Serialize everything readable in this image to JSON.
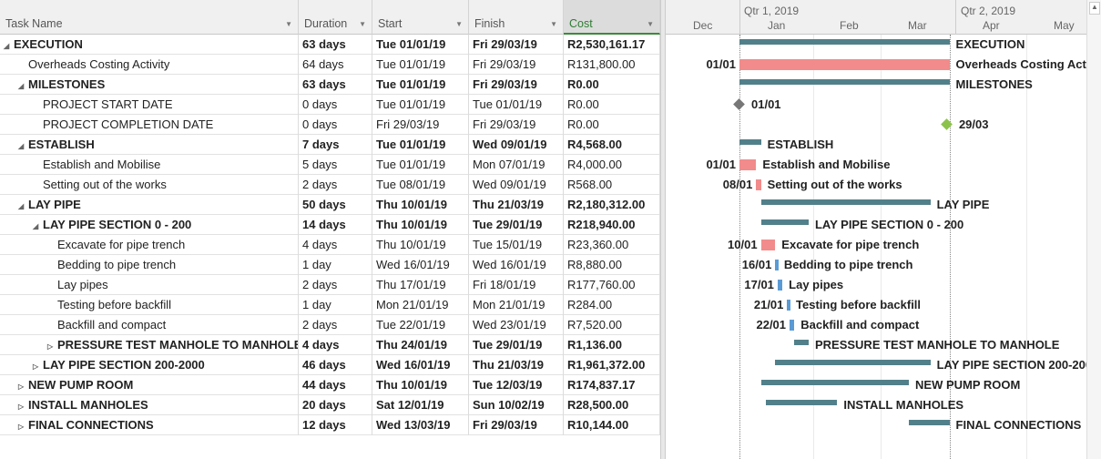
{
  "columns": {
    "task_name": "Task Name",
    "duration": "Duration",
    "start": "Start",
    "finish": "Finish",
    "cost": "Cost"
  },
  "timescale": {
    "quarters": [
      "Qtr 1, 2019",
      "Qtr 2, 2019"
    ],
    "months": [
      "Dec",
      "Jan",
      "Feb",
      "Mar",
      "Apr",
      "May"
    ]
  },
  "colors": {
    "summary": "#52808a",
    "critical": "#f28b8b",
    "task": "#5b9bd5",
    "milestone": "#777777",
    "milestone_finish": "#8bc34a"
  },
  "rows": [
    {
      "name": "EXECUTION",
      "level": 0,
      "toggle": "expanded",
      "bold": true,
      "duration": "63 days",
      "start": "Tue 01/01/19",
      "finish": "Fri 29/03/19",
      "cost": "R2,530,161.17",
      "bar": "summary",
      "s": "2019-01-01",
      "f": "2019-03-29"
    },
    {
      "name": "Overheads Costing Activity",
      "level": 1,
      "toggle": "",
      "bold": false,
      "duration": "64 days",
      "start": "Tue 01/01/19",
      "finish": "Fri 29/03/19",
      "cost": "R131,800.00",
      "bar": "critical",
      "s": "2019-01-01",
      "f": "2019-03-29",
      "left": "01/01"
    },
    {
      "name": "MILESTONES",
      "level": 1,
      "toggle": "expanded",
      "bold": true,
      "duration": "63 days",
      "start": "Tue 01/01/19",
      "finish": "Fri 29/03/19",
      "cost": "R0.00",
      "bar": "summary",
      "s": "2019-01-01",
      "f": "2019-03-29"
    },
    {
      "name": "PROJECT START DATE",
      "level": 2,
      "toggle": "",
      "bold": false,
      "duration": "0 days",
      "start": "Tue 01/01/19",
      "finish": "Tue 01/01/19",
      "cost": "R0.00",
      "bar": "milestone",
      "s": "2019-01-01",
      "f": "2019-01-01",
      "right": "01/01"
    },
    {
      "name": "PROJECT COMPLETION DATE",
      "level": 2,
      "toggle": "",
      "bold": false,
      "duration": "0 days",
      "start": "Fri 29/03/19",
      "finish": "Fri 29/03/19",
      "cost": "R0.00",
      "bar": "milestone_finish",
      "s": "2019-03-29",
      "f": "2019-03-29",
      "right": "29/03"
    },
    {
      "name": "ESTABLISH",
      "level": 1,
      "toggle": "expanded",
      "bold": true,
      "duration": "7 days",
      "start": "Tue 01/01/19",
      "finish": "Wed 09/01/19",
      "cost": "R4,568.00",
      "bar": "summary",
      "s": "2019-01-01",
      "f": "2019-01-09"
    },
    {
      "name": "Establish and Mobilise",
      "level": 2,
      "toggle": "",
      "bold": false,
      "duration": "5 days",
      "start": "Tue 01/01/19",
      "finish": "Mon 07/01/19",
      "cost": "R4,000.00",
      "bar": "critical",
      "s": "2019-01-01",
      "f": "2019-01-07",
      "left": "01/01"
    },
    {
      "name": "Setting out of the works",
      "level": 2,
      "toggle": "",
      "bold": false,
      "duration": "2 days",
      "start": "Tue 08/01/19",
      "finish": "Wed 09/01/19",
      "cost": "R568.00",
      "bar": "critical",
      "s": "2019-01-08",
      "f": "2019-01-09",
      "left": "08/01"
    },
    {
      "name": "LAY PIPE",
      "level": 1,
      "toggle": "expanded",
      "bold": true,
      "duration": "50 days",
      "start": "Thu 10/01/19",
      "finish": "Thu 21/03/19",
      "cost": "R2,180,312.00",
      "bar": "summary",
      "s": "2019-01-10",
      "f": "2019-03-21"
    },
    {
      "name": "LAY PIPE SECTION 0 - 200",
      "level": 2,
      "toggle": "expanded",
      "bold": true,
      "duration": "14 days",
      "start": "Thu 10/01/19",
      "finish": "Tue 29/01/19",
      "cost": "R218,940.00",
      "bar": "summary",
      "s": "2019-01-10",
      "f": "2019-01-29"
    },
    {
      "name": "Excavate for pipe trench",
      "level": 3,
      "toggle": "",
      "bold": false,
      "duration": "4 days",
      "start": "Thu 10/01/19",
      "finish": "Tue 15/01/19",
      "cost": "R23,360.00",
      "bar": "critical",
      "s": "2019-01-10",
      "f": "2019-01-15",
      "left": "10/01"
    },
    {
      "name": "Bedding to pipe trench",
      "level": 3,
      "toggle": "",
      "bold": false,
      "duration": "1 day",
      "start": "Wed 16/01/19",
      "finish": "Wed 16/01/19",
      "cost": "R8,880.00",
      "bar": "task",
      "s": "2019-01-16",
      "f": "2019-01-16",
      "left": "16/01"
    },
    {
      "name": "Lay pipes",
      "level": 3,
      "toggle": "",
      "bold": false,
      "duration": "2 days",
      "start": "Thu 17/01/19",
      "finish": "Fri 18/01/19",
      "cost": "R177,760.00",
      "bar": "task",
      "s": "2019-01-17",
      "f": "2019-01-18",
      "left": "17/01"
    },
    {
      "name": "Testing before backfill",
      "level": 3,
      "toggle": "",
      "bold": false,
      "duration": "1 day",
      "start": "Mon 21/01/19",
      "finish": "Mon 21/01/19",
      "cost": "R284.00",
      "bar": "task",
      "s": "2019-01-21",
      "f": "2019-01-21",
      "left": "21/01"
    },
    {
      "name": "Backfill and compact",
      "level": 3,
      "toggle": "",
      "bold": false,
      "duration": "2 days",
      "start": "Tue 22/01/19",
      "finish": "Wed 23/01/19",
      "cost": "R7,520.00",
      "bar": "task",
      "s": "2019-01-22",
      "f": "2019-01-23",
      "left": "22/01"
    },
    {
      "name": "PRESSURE TEST MANHOLE TO MANHOLE",
      "level": 3,
      "toggle": "collapsed",
      "bold": true,
      "duration": "4 days",
      "start": "Thu 24/01/19",
      "finish": "Tue 29/01/19",
      "cost": "R1,136.00",
      "bar": "summary",
      "s": "2019-01-24",
      "f": "2019-01-29"
    },
    {
      "name": "LAY PIPE SECTION 200-2000",
      "level": 2,
      "toggle": "collapsed",
      "bold": true,
      "duration": "46 days",
      "start": "Wed 16/01/19",
      "finish": "Thu 21/03/19",
      "cost": "R1,961,372.00",
      "bar": "summary",
      "s": "2019-01-16",
      "f": "2019-03-21"
    },
    {
      "name": "NEW PUMP ROOM",
      "level": 1,
      "toggle": "collapsed",
      "bold": true,
      "duration": "44 days",
      "start": "Thu 10/01/19",
      "finish": "Tue 12/03/19",
      "cost": "R174,837.17",
      "bar": "summary",
      "s": "2019-01-10",
      "f": "2019-03-12"
    },
    {
      "name": "INSTALL MANHOLES",
      "level": 1,
      "toggle": "collapsed",
      "bold": true,
      "duration": "20 days",
      "start": "Sat 12/01/19",
      "finish": "Sun 10/02/19",
      "cost": "R28,500.00",
      "bar": "summary",
      "s": "2019-01-12",
      "f": "2019-02-10"
    },
    {
      "name": "FINAL CONNECTIONS",
      "level": 1,
      "toggle": "collapsed",
      "bold": true,
      "duration": "12 days",
      "start": "Wed 13/03/19",
      "finish": "Fri 29/03/19",
      "cost": "R10,144.00",
      "bar": "summary",
      "s": "2019-03-13",
      "f": "2019-03-29"
    }
  ]
}
